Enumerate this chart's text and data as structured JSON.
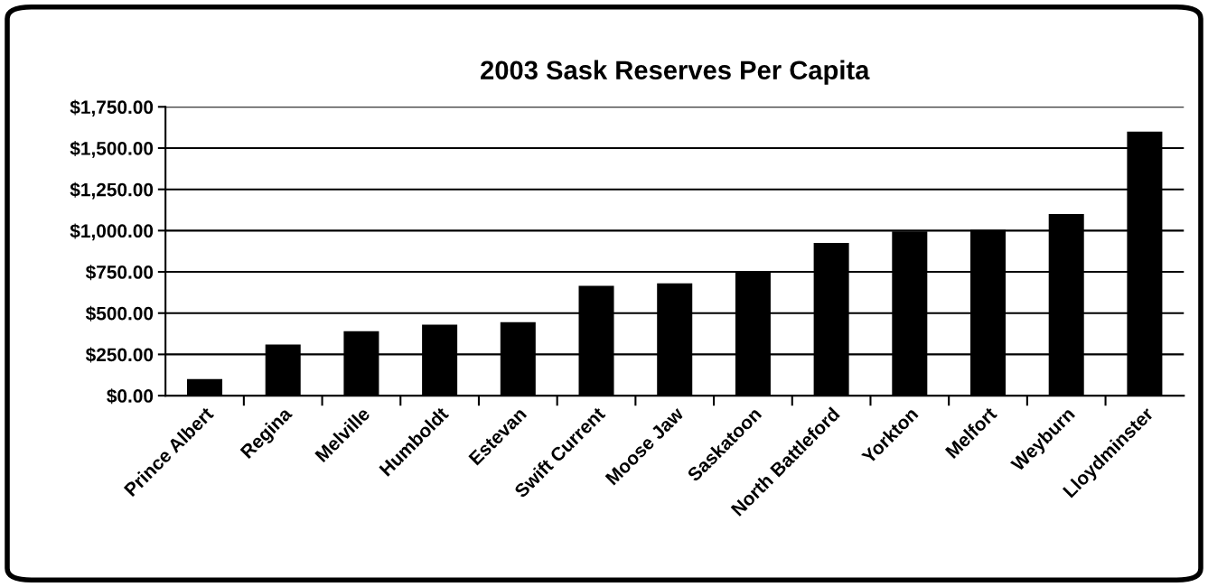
{
  "chart_data": {
    "type": "bar",
    "title": "2003 Sask Reserves Per Capita",
    "categories": [
      "Prince Albert",
      "Regina",
      "Melville",
      "Humboldt",
      "Estevan",
      "Swift Current",
      "Moose Jaw",
      "Saskatoon",
      "North Battleford",
      "Yorkton",
      "Melfort",
      "Weyburn",
      "Lloydminster"
    ],
    "values": [
      100,
      310,
      390,
      430,
      445,
      665,
      680,
      750,
      925,
      995,
      1005,
      1100,
      1600
    ],
    "color": "#000000",
    "ylim": [
      0,
      1750
    ],
    "yticks": [
      {
        "value": 0,
        "label": "$0.00"
      },
      {
        "value": 250,
        "label": "$250.00"
      },
      {
        "value": 500,
        "label": "$500.00"
      },
      {
        "value": 750,
        "label": "$750.00"
      },
      {
        "value": 1000,
        "label": "$1,000.00"
      },
      {
        "value": 1250,
        "label": "$1,250.00"
      },
      {
        "value": 1500,
        "label": "$1,500.00"
      },
      {
        "value": 1750,
        "label": "$1,750.00"
      }
    ],
    "grid": "y",
    "legend": false
  }
}
